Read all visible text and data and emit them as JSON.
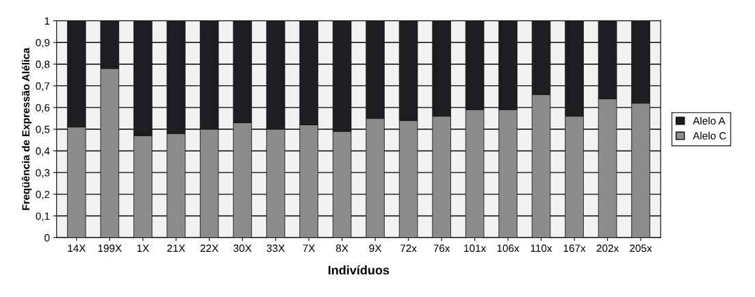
{
  "chart_data": {
    "type": "bar",
    "stacked": true,
    "xlabel": "Indivíduos",
    "ylabel": "Freqüência de Expressão Alélica",
    "categories": [
      "14X",
      "199X",
      "1X",
      "21X",
      "22X",
      "30X",
      "33X",
      "7X",
      "8X",
      "9X",
      "72x",
      "76x",
      "101x",
      "106x",
      "110x",
      "167x",
      "202x",
      "205x"
    ],
    "series": [
      {
        "name": "Alelo C",
        "color": "#8c8c8c",
        "values": [
          0.51,
          0.78,
          0.47,
          0.48,
          0.5,
          0.53,
          0.5,
          0.52,
          0.49,
          0.55,
          0.54,
          0.56,
          0.59,
          0.59,
          0.66,
          0.56,
          0.64,
          0.62
        ]
      },
      {
        "name": "Alelo A",
        "color": "#1c1e21",
        "values": [
          0.49,
          0.22,
          0.53,
          0.52,
          0.5,
          0.47,
          0.5,
          0.48,
          0.51,
          0.45,
          0.46,
          0.44,
          0.41,
          0.41,
          0.34,
          0.44,
          0.36,
          0.38
        ]
      }
    ],
    "ylim": [
      0,
      1
    ],
    "yticks": [
      0,
      {
        "value": 0.1,
        "label": "0,1"
      },
      {
        "value": 0.2,
        "label": "0,2"
      },
      {
        "value": 0.3,
        "label": "0,3"
      },
      {
        "value": 0.4,
        "label": "0,4"
      },
      {
        "value": 0.5,
        "label": "0,5"
      },
      {
        "value": 0.6,
        "label": "0,6"
      },
      {
        "value": 0.7,
        "label": "0,7"
      },
      {
        "value": 0.8,
        "label": "0,8"
      },
      {
        "value": 0.9,
        "label": "0,9"
      },
      1
    ],
    "grid": "y",
    "legend": "right"
  }
}
